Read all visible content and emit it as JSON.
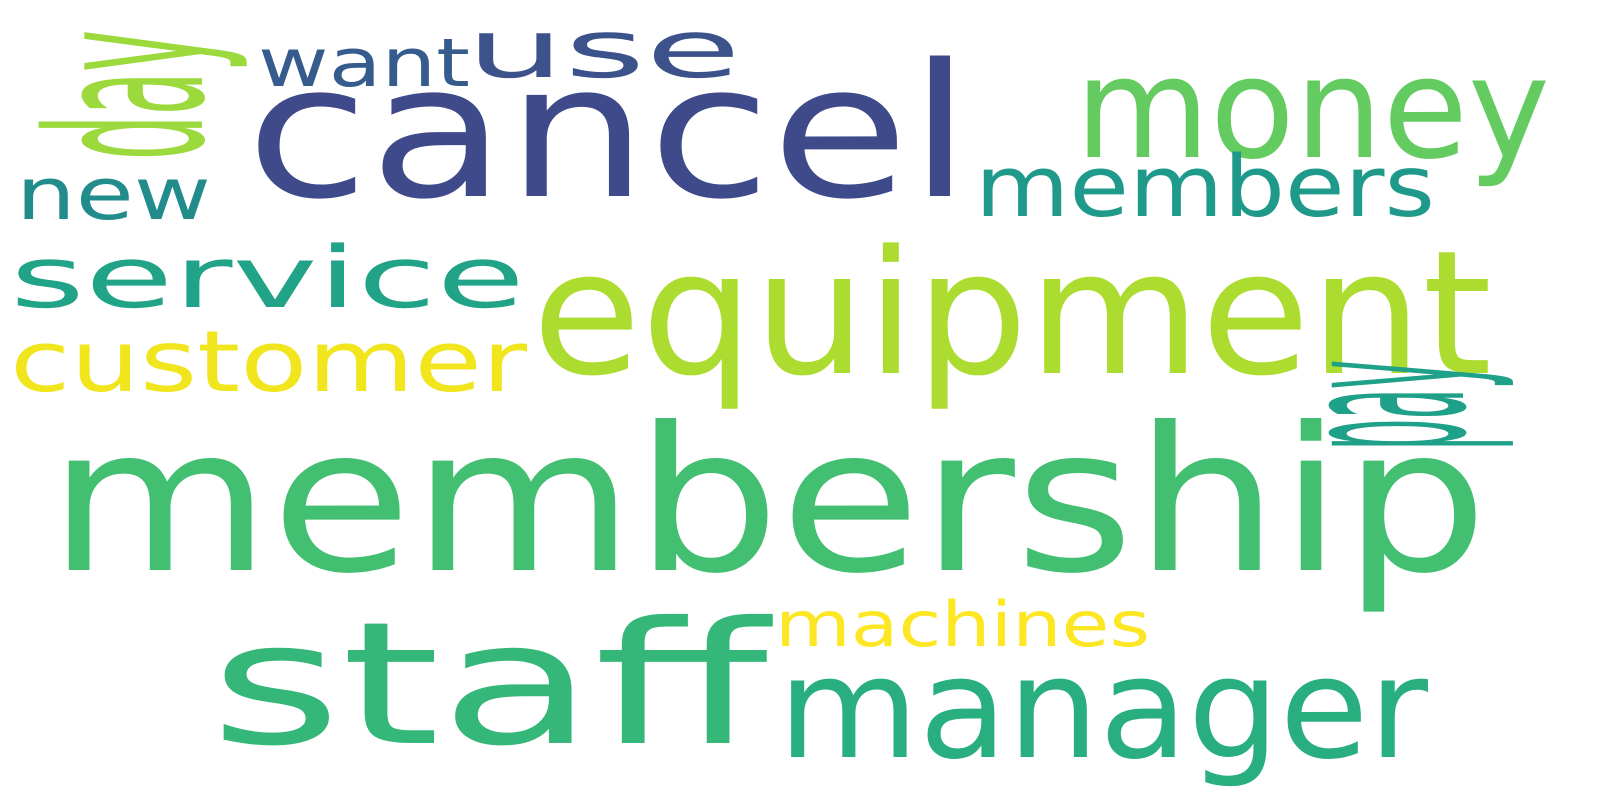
{
  "words": [
    {
      "id": "membership",
      "text": "membership",
      "color": "#43bf71"
    },
    {
      "id": "cancel",
      "text": "cancel",
      "color": "#3e4a89"
    },
    {
      "id": "equipment",
      "text": "equipment",
      "color": "#addc30"
    },
    {
      "id": "staff",
      "text": "staff",
      "color": "#35b779"
    },
    {
      "id": "manager",
      "text": "manager",
      "color": "#29af7f"
    },
    {
      "id": "money",
      "text": "money",
      "color": "#63cb5f"
    },
    {
      "id": "service",
      "text": "service",
      "color": "#20a386"
    },
    {
      "id": "customer",
      "text": "customer",
      "color": "#f1e51d"
    },
    {
      "id": "members",
      "text": "members",
      "color": "#1f9a8a"
    },
    {
      "id": "use",
      "text": "use",
      "color": "#3b528b"
    },
    {
      "id": "want",
      "text": "want",
      "color": "#365c8d"
    },
    {
      "id": "day",
      "text": "day",
      "color": "#9bd93c"
    },
    {
      "id": "new",
      "text": "new",
      "color": "#228c8d"
    },
    {
      "id": "pay",
      "text": "pay",
      "color": "#1fa088"
    },
    {
      "id": "machines",
      "text": "machines",
      "color": "#fde725"
    }
  ]
}
